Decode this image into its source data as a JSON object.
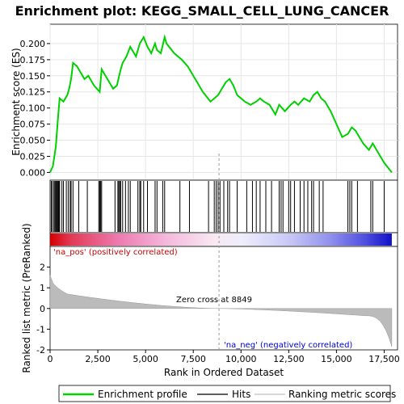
{
  "chart_data": {
    "type": "line",
    "title": "Enrichment plot: KEGG_SMALL_CELL_LUNG_CANCER",
    "xlabel": "Rank in Ordered Dataset",
    "ylabel_top": "Enrichment score (ES)",
    "ylabel_bottom": "Ranked list metric (PreRanked)",
    "x_ticks": [
      "0",
      "2,500",
      "5,000",
      "7,500",
      "10,000",
      "12,500",
      "15,000",
      "17,500"
    ],
    "x_tick_values": [
      0,
      2500,
      5000,
      7500,
      10000,
      12500,
      15000,
      17500
    ],
    "xlim": [
      0,
      18200
    ],
    "es_ylim": [
      -0.012,
      0.23
    ],
    "es_y_ticks": [
      "0.000",
      "0.025",
      "0.050",
      "0.075",
      "0.100",
      "0.125",
      "0.150",
      "0.175",
      "0.200"
    ],
    "es_y_tick_values": [
      0,
      0.025,
      0.05,
      0.075,
      0.1,
      0.125,
      0.15,
      0.175,
      0.2
    ],
    "metric_ylim": [
      -2,
      3
    ],
    "metric_y_ticks": [
      "-2",
      "-1",
      "0",
      "1",
      "2"
    ],
    "metric_y_tick_values": [
      -2,
      -1,
      0,
      1,
      2
    ],
    "zero_cross_label": "Zero cross at 8849",
    "zero_cross": 8849,
    "pos_label": "'na_pos' (positively correlated)",
    "neg_label": "'na_neg' (negatively correlated)",
    "enrichment_profile": {
      "x": [
        0,
        150,
        300,
        400,
        500,
        700,
        900,
        1000,
        1100,
        1200,
        1400,
        1600,
        1800,
        2000,
        2300,
        2600,
        2700,
        3000,
        3300,
        3500,
        3700,
        3800,
        4000,
        4200,
        4500,
        4700,
        4900,
        5100,
        5300,
        5500,
        5600,
        5800,
        6000,
        6100,
        6500,
        6900,
        7200,
        7600,
        8000,
        8400,
        8800,
        9000,
        9200,
        9400,
        9600,
        9800,
        10000,
        10200,
        10500,
        10800,
        11000,
        11200,
        11500,
        11800,
        12000,
        12300,
        12600,
        12800,
        13000,
        13300,
        13600,
        13800,
        14000,
        14200,
        14400,
        14700,
        15000,
        15300,
        15600,
        15800,
        16000,
        16200,
        16400,
        16700,
        16900,
        17100,
        17300,
        17500,
        17900
      ],
      "y": [
        0.0,
        0.01,
        0.04,
        0.08,
        0.115,
        0.11,
        0.12,
        0.13,
        0.145,
        0.17,
        0.165,
        0.155,
        0.145,
        0.15,
        0.135,
        0.125,
        0.16,
        0.145,
        0.13,
        0.135,
        0.16,
        0.17,
        0.18,
        0.195,
        0.18,
        0.2,
        0.21,
        0.195,
        0.185,
        0.2,
        0.19,
        0.185,
        0.21,
        0.2,
        0.185,
        0.175,
        0.165,
        0.145,
        0.125,
        0.11,
        0.12,
        0.13,
        0.14,
        0.145,
        0.135,
        0.12,
        0.115,
        0.11,
        0.105,
        0.11,
        0.115,
        0.11,
        0.105,
        0.09,
        0.105,
        0.095,
        0.105,
        0.11,
        0.105,
        0.115,
        0.11,
        0.12,
        0.125,
        0.115,
        0.11,
        0.095,
        0.075,
        0.055,
        0.06,
        0.07,
        0.065,
        0.055,
        0.045,
        0.035,
        0.045,
        0.035,
        0.025,
        0.015,
        0.0
      ]
    },
    "hits": [
      60,
      120,
      200,
      250,
      300,
      330,
      380,
      420,
      460,
      500,
      620,
      700,
      850,
      950,
      1050,
      1100,
      1200,
      1500,
      1950,
      2550,
      2600,
      2650,
      2700,
      3400,
      3550,
      3600,
      3650,
      3700,
      3800,
      3950,
      4100,
      4200,
      4600,
      4700,
      4750,
      4900,
      5100,
      5500,
      5600,
      5900,
      6000,
      6800,
      7300,
      8300,
      8600,
      8700,
      8800,
      8900,
      9100,
      9300,
      9400,
      9800,
      10300,
      10600,
      10800,
      11000,
      11300,
      11600,
      12000,
      12100,
      12200,
      12500,
      12600,
      12800,
      13100,
      13300,
      13500,
      13700,
      13800,
      14100,
      14300,
      15600,
      15700,
      15800,
      16100,
      16800,
      16900,
      17500
    ]
  },
  "legend": {
    "items": [
      {
        "label": "Enrichment profile",
        "color": "#00d000"
      },
      {
        "label": "Hits",
        "color": "#000000"
      },
      {
        "label": "Ranking metric scores",
        "color": "#c0c0c0"
      }
    ]
  },
  "colors": {
    "profile": "#00d000",
    "hit": "#000000",
    "metric_fill": "#bbbbbb",
    "pos_label": "#cc0000",
    "neg_label": "#0000cc",
    "zero_line": "#999999"
  }
}
